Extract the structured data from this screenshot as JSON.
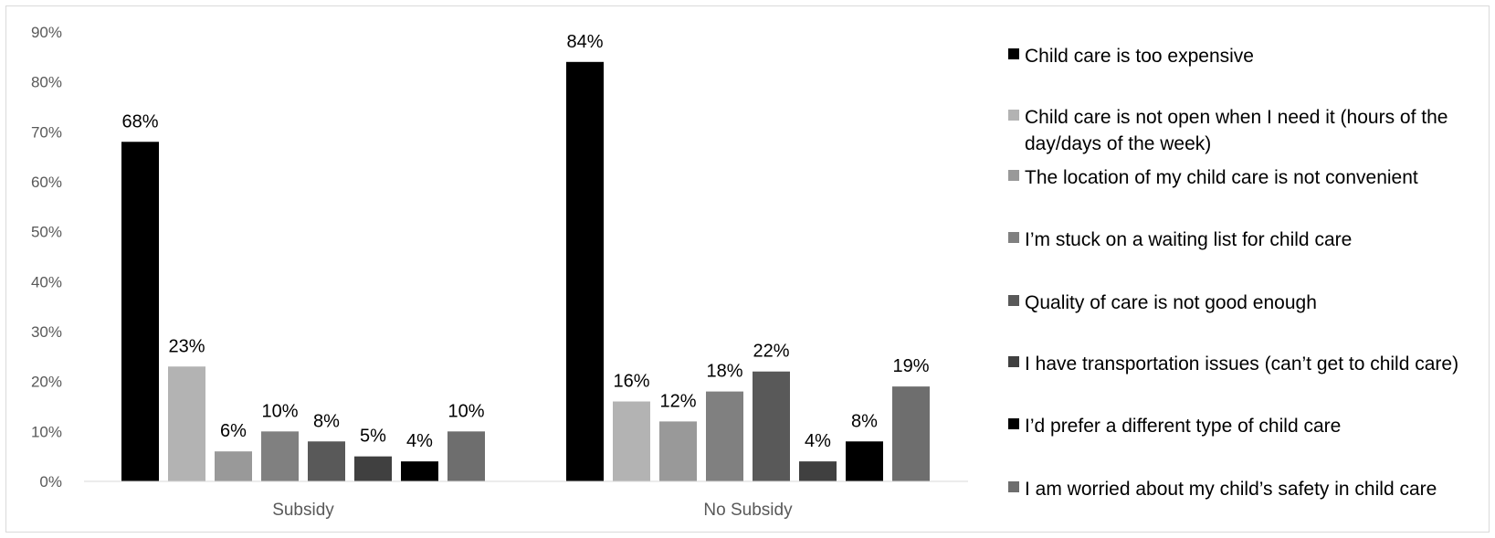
{
  "chart_data": {
    "type": "bar",
    "title": "",
    "xlabel": "",
    "ylabel": "",
    "ylim": [
      0,
      90
    ],
    "yticks": [
      "0%",
      "10%",
      "20%",
      "30%",
      "40%",
      "50%",
      "60%",
      "70%",
      "80%",
      "90%"
    ],
    "grid": false,
    "legend_position": "right",
    "categories": [
      "Subsidy",
      "No Subsidy"
    ],
    "series": [
      {
        "name": "Child care is too expensive",
        "color": "#000000",
        "values": [
          68,
          84
        ],
        "labels": [
          "68%",
          "84%"
        ]
      },
      {
        "name": "Child care is not open when I need it (hours of the day/days of the week)",
        "color": "#b3b3b3",
        "values": [
          23,
          16
        ],
        "labels": [
          "23%",
          "16%"
        ]
      },
      {
        "name": "The location of my child care is not convenient",
        "color": "#999999",
        "values": [
          6,
          12
        ],
        "labels": [
          "6%",
          "12%"
        ]
      },
      {
        "name": "I’m stuck on a waiting list for child care",
        "color": "#808080",
        "values": [
          10,
          18
        ],
        "labels": [
          "10%",
          "18%"
        ]
      },
      {
        "name": "Quality of care is not good enough",
        "color": "#595959",
        "values": [
          8,
          22
        ],
        "labels": [
          "8%",
          "22%"
        ]
      },
      {
        "name": "I have transportation issues (can’t get to child care)",
        "color": "#404040",
        "values": [
          5,
          4
        ],
        "labels": [
          "5%",
          "4%"
        ]
      },
      {
        "name": "I’d prefer a different type of child care",
        "color": "#000000",
        "values": [
          4,
          8
        ],
        "labels": [
          "4%",
          "8%"
        ]
      },
      {
        "name": "I am worried about my child’s safety in child care",
        "color": "#6e6e6e",
        "values": [
          10,
          19
        ],
        "labels": [
          "10%",
          "19%"
        ]
      }
    ]
  }
}
